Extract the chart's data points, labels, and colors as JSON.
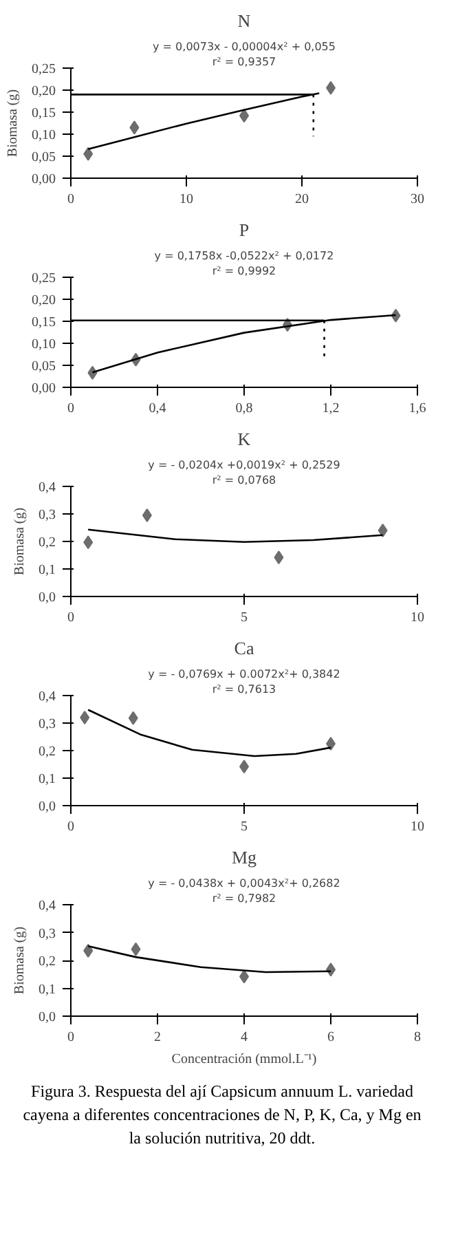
{
  "chart_data": [
    {
      "type": "scatter",
      "title": "N",
      "ylabel": "Biomasa (g)",
      "annotations": [
        "y = 0,0073x - 0,00004x² + 0,055",
        "r² = 0,9357"
      ],
      "xlim": [
        0,
        30
      ],
      "xticks": [
        0,
        10,
        20,
        30
      ],
      "ylim": [
        0,
        0.25
      ],
      "yticks": [
        {
          "value": 0,
          "label": "0,00"
        },
        {
          "value": 0.05,
          "label": "0,05"
        },
        {
          "value": 0.1,
          "label": "0,10"
        },
        {
          "value": 0.15,
          "label": "0,15"
        },
        {
          "value": 0.2,
          "label": "0,20"
        },
        {
          "value": 0.25,
          "label": "0,25"
        }
      ],
      "series": [
        {
          "marker": "diamond",
          "color": "#6d6d6d",
          "x": [
            1.5,
            5.5,
            15,
            22.5
          ],
          "values": [
            0.055,
            0.115,
            0.142,
            0.205
          ]
        },
        {
          "type": "line",
          "color": "#000000",
          "x": [
            1.5,
            5,
            10,
            15,
            20,
            21.5
          ],
          "values": [
            0.066,
            0.09,
            0.124,
            0.155,
            0.185,
            0.193
          ]
        },
        {
          "type": "line",
          "color": "#000000",
          "x": [
            0,
            21
          ],
          "values": [
            0.19,
            0.19
          ]
        },
        {
          "type": "line",
          "color": "#000000",
          "line_style": "dotted",
          "x": [
            21,
            21
          ],
          "values": [
            0.19,
            0.095
          ]
        }
      ]
    },
    {
      "type": "scatter",
      "title": "P",
      "annotations": [
        "y = 0,1758x -0,0522x² + 0,0172",
        "r² = 0,9992"
      ],
      "xlim": [
        0,
        1.6
      ],
      "xticks": [
        0,
        {
          "value": 0.4,
          "label": "0,4"
        },
        {
          "value": 0.8,
          "label": "0,8"
        },
        {
          "value": 1.2,
          "label": "1,2"
        },
        {
          "value": 1.6,
          "label": "1,6"
        }
      ],
      "ylim": [
        0,
        0.25
      ],
      "yticks": [
        {
          "value": 0,
          "label": "0,00"
        },
        {
          "value": 0.05,
          "label": "0,05"
        },
        {
          "value": 0.1,
          "label": "0,10"
        },
        {
          "value": 0.15,
          "label": "0,15"
        },
        {
          "value": 0.2,
          "label": "0,20"
        },
        {
          "value": 0.25,
          "label": "0,25"
        }
      ],
      "series": [
        {
          "marker": "diamond",
          "color": "#6d6d6d",
          "x": [
            0.1,
            0.3,
            1.0,
            1.5
          ],
          "values": [
            0.033,
            0.063,
            0.142,
            0.163
          ]
        },
        {
          "type": "line",
          "color": "#000000",
          "x": [
            0.1,
            0.4,
            0.8,
            1.2,
            1.5
          ],
          "values": [
            0.034,
            0.079,
            0.124,
            0.153,
            0.164
          ]
        },
        {
          "type": "line",
          "color": "#000000",
          "x": [
            0,
            1.17
          ],
          "values": [
            0.152,
            0.152
          ]
        },
        {
          "type": "line",
          "color": "#000000",
          "line_style": "dotted",
          "x": [
            1.17,
            1.17
          ],
          "values": [
            0.152,
            0.065
          ]
        }
      ]
    },
    {
      "type": "scatter",
      "title": "K",
      "ylabel": "Biomasa (g)",
      "annotations": [
        "y = - 0,0204x +0,0019x² + 0,2529",
        "r² = 0,0768"
      ],
      "xlim": [
        0,
        10
      ],
      "xticks": [
        0,
        5,
        10
      ],
      "ylim": [
        0,
        0.4
      ],
      "yticks": [
        {
          "value": 0,
          "label": "0,0"
        },
        {
          "value": 0.1,
          "label": "0,1"
        },
        {
          "value": 0.2,
          "label": "0,2"
        },
        {
          "value": 0.3,
          "label": "0,3"
        },
        {
          "value": 0.4,
          "label": "0,4"
        }
      ],
      "series": [
        {
          "marker": "diamond",
          "color": "#6d6d6d",
          "x": [
            0.5,
            2.2,
            6,
            9
          ],
          "values": [
            0.197,
            0.295,
            0.142,
            0.24
          ]
        },
        {
          "type": "line",
          "color": "#000000",
          "x": [
            0.5,
            3,
            5,
            7,
            9
          ],
          "values": [
            0.243,
            0.208,
            0.198,
            0.205,
            0.223
          ]
        }
      ]
    },
    {
      "type": "scatter",
      "title": "Ca",
      "annotations": [
        "y = - 0,0769x + 0.0072x²+ 0,3842",
        "r² = 0,7613"
      ],
      "xlim": [
        0,
        10
      ],
      "xticks": [
        0,
        5,
        10
      ],
      "ylim": [
        0,
        0.4
      ],
      "yticks": [
        {
          "value": 0,
          "label": "0,0"
        },
        {
          "value": 0.1,
          "label": "0,1"
        },
        {
          "value": 0.2,
          "label": "0,2"
        },
        {
          "value": 0.3,
          "label": "0,3"
        },
        {
          "value": 0.4,
          "label": "0,4"
        }
      ],
      "series": [
        {
          "marker": "diamond",
          "color": "#6d6d6d",
          "x": [
            0.4,
            1.8,
            5,
            7.5
          ],
          "values": [
            0.32,
            0.318,
            0.142,
            0.225
          ]
        },
        {
          "type": "line",
          "color": "#000000",
          "x": [
            0.5,
            2,
            3.5,
            5.3,
            6.5,
            7.5
          ],
          "values": [
            0.348,
            0.259,
            0.203,
            0.18,
            0.188,
            0.211
          ]
        }
      ]
    },
    {
      "type": "scatter",
      "title": "Mg",
      "ylabel": "Biomasa (g)",
      "xlabel": "Concentración (mmol.L⁻¹)",
      "annotations": [
        "y = - 0,0438x + 0,0043x²+ 0,2682",
        "r² = 0,7982",
        "Figura 3. Respuesta del ají Capsicum annuum L. variedad cayena a diferentes concentraciones de N, P, K, Ca, y Mg en la solución nutritiva, 20 ddt."
      ],
      "xlim": [
        0,
        8
      ],
      "xticks": [
        0,
        2,
        4,
        6,
        8
      ],
      "ylim": [
        0,
        0.4
      ],
      "yticks": [
        {
          "value": 0,
          "label": "0,0"
        },
        {
          "value": 0.1,
          "label": "0,1"
        },
        {
          "value": 0.2,
          "label": "0,2"
        },
        {
          "value": 0.3,
          "label": "0,3"
        },
        {
          "value": 0.4,
          "label": "0,4"
        }
      ],
      "series": [
        {
          "marker": "diamond",
          "color": "#6d6d6d",
          "x": [
            0.4,
            1.5,
            4,
            6
          ],
          "values": [
            0.235,
            0.24,
            0.142,
            0.167
          ]
        },
        {
          "type": "line",
          "color": "#000000",
          "x": [
            0.4,
            1.5,
            3,
            4.5,
            6
          ],
          "values": [
            0.251,
            0.212,
            0.176,
            0.158,
            0.161
          ]
        }
      ]
    }
  ]
}
